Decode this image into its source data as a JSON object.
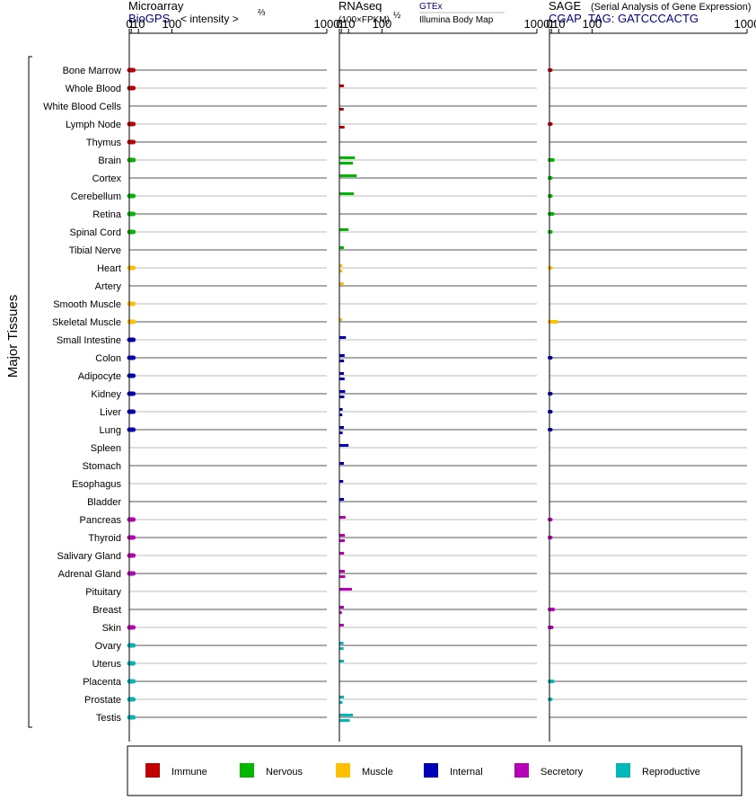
{
  "chart_data": {
    "type": "bar",
    "axis_label": "Major Tissues",
    "scale": "power 2/3",
    "xlim": [
      0,
      1000
    ],
    "ticks": [
      0,
      1,
      10,
      100,
      1000
    ],
    "panels": {
      "microarray": {
        "title": "Microarray",
        "source": "BioGPS",
        "scale_label": "< intensity >",
        "scale_exp": "⅔"
      },
      "rnaseq": {
        "title": "RNAseq",
        "unit": "(100×FPKM)",
        "unit_exp": "½",
        "series": [
          "GTEx",
          "Illumina Body Map"
        ]
      },
      "sage": {
        "title": "SAGE",
        "subtitle": "(Serial Analysis of Gene Expression)",
        "source": "CGAP",
        "tag": "TAG: GATCCCACTG"
      }
    },
    "groups": [
      {
        "name": "Immune",
        "color": "#c00000"
      },
      {
        "name": "Nervous",
        "color": "#00b800"
      },
      {
        "name": "Muscle",
        "color": "#ffc000"
      },
      {
        "name": "Internal",
        "color": "#0000b8"
      },
      {
        "name": "Secretory",
        "color": "#b800b8"
      },
      {
        "name": "Reproductive",
        "color": "#00b8b8"
      }
    ],
    "tissues": [
      {
        "name": "Bone Marrow",
        "group": 0,
        "microarray": 3,
        "gtex": null,
        "ibm": null,
        "sage": 0.05
      },
      {
        "name": "Whole Blood",
        "group": 0,
        "microarray": 3,
        "gtex": 3.5,
        "ibm": null,
        "sage": null
      },
      {
        "name": "White Blood Cells",
        "group": 0,
        "microarray": null,
        "gtex": null,
        "ibm": 3.2,
        "sage": null
      },
      {
        "name": "Lymph Node",
        "group": 0,
        "microarray": 3,
        "gtex": null,
        "ibm": 4.2,
        "sage": 0.05
      },
      {
        "name": "Thymus",
        "group": 0,
        "microarray": 3,
        "gtex": null,
        "ibm": null,
        "sage": null
      },
      {
        "name": "Brain",
        "group": 1,
        "microarray": 3.2,
        "gtex": 22,
        "ibm": 18,
        "sage": 2.3
      },
      {
        "name": "Cortex",
        "group": 1,
        "microarray": null,
        "gtex": 26,
        "ibm": null,
        "sage": 0.03
      },
      {
        "name": "Cerebellum",
        "group": 1,
        "microarray": 3,
        "gtex": 20,
        "ibm": null,
        "sage": 0.03
      },
      {
        "name": "Retina",
        "group": 1,
        "microarray": 3,
        "gtex": null,
        "ibm": null,
        "sage": 2.0
      },
      {
        "name": "Spinal Cord",
        "group": 1,
        "microarray": 3,
        "gtex": 10,
        "ibm": null,
        "sage": 0.03
      },
      {
        "name": "Tibial Nerve",
        "group": 1,
        "microarray": null,
        "gtex": 3.5,
        "ibm": null,
        "sage": null
      },
      {
        "name": "Heart",
        "group": 2,
        "microarray": 3,
        "gtex": 1.9,
        "ibm": 1.8,
        "sage": 0.02
      },
      {
        "name": "Artery",
        "group": 2,
        "microarray": null,
        "gtex": 3.2,
        "ibm": null,
        "sage": null
      },
      {
        "name": "Smooth Muscle",
        "group": 2,
        "microarray": 3,
        "gtex": null,
        "ibm": null,
        "sage": null
      },
      {
        "name": "Skeletal Muscle",
        "group": 2,
        "microarray": 3.2,
        "gtex": 1.6,
        "ibm": null,
        "sage": 6.5
      },
      {
        "name": "Small Intestine",
        "group": 3,
        "microarray": 3,
        "gtex": 6,
        "ibm": null,
        "sage": null
      },
      {
        "name": "Colon",
        "group": 3,
        "microarray": 3,
        "gtex": 4.3,
        "ibm": 3.6,
        "sage": 0.05
      },
      {
        "name": "Adipocyte",
        "group": 3,
        "microarray": 3,
        "gtex": 3.5,
        "ibm": 4.3,
        "sage": null
      },
      {
        "name": "Kidney",
        "group": 3,
        "microarray": 3,
        "gtex": 5,
        "ibm": 3.9,
        "sage": 0.05
      },
      {
        "name": "Liver",
        "group": 3,
        "microarray": 3,
        "gtex": 2.1,
        "ibm": 1.8,
        "sage": 0.05
      },
      {
        "name": "Lung",
        "group": 3,
        "microarray": 3,
        "gtex": 3.4,
        "ibm": 2.1,
        "sage": 0.05
      },
      {
        "name": "Spleen",
        "group": 3,
        "microarray": null,
        "gtex": 10,
        "ibm": null,
        "sage": null
      },
      {
        "name": "Stomach",
        "group": 3,
        "microarray": null,
        "gtex": 3.5,
        "ibm": null,
        "sage": null
      },
      {
        "name": "Esophagus",
        "group": 3,
        "microarray": null,
        "gtex": 2.7,
        "ibm": null,
        "sage": null
      },
      {
        "name": "Bladder",
        "group": 3,
        "microarray": null,
        "gtex": 3.5,
        "ibm": null,
        "sage": null
      },
      {
        "name": "Pancreas",
        "group": 4,
        "microarray": 3,
        "gtex": 5.5,
        "ibm": null,
        "sage": 0.05
      },
      {
        "name": "Thyroid",
        "group": 4,
        "microarray": 3,
        "gtex": 4.7,
        "ibm": 4.5,
        "sage": 0.05
      },
      {
        "name": "Salivary Gland",
        "group": 4,
        "microarray": 3,
        "gtex": 3.6,
        "ibm": null,
        "sage": null
      },
      {
        "name": "Adrenal Gland",
        "group": 4,
        "microarray": 3,
        "gtex": 4.5,
        "ibm": 5.1,
        "sage": null
      },
      {
        "name": "Pituitary",
        "group": 4,
        "microarray": null,
        "gtex": 16,
        "ibm": null,
        "sage": null
      },
      {
        "name": "Breast",
        "group": 4,
        "microarray": null,
        "gtex": 3.4,
        "ibm": 1.4,
        "sage": 2.5
      },
      {
        "name": "Skin",
        "group": 4,
        "microarray": 3,
        "gtex": 3.3,
        "ibm": null,
        "sage": 1.2
      },
      {
        "name": "Ovary",
        "group": 5,
        "microarray": 3,
        "gtex": 3,
        "ibm": 3.1,
        "sage": null
      },
      {
        "name": "Uterus",
        "group": 5,
        "microarray": 3,
        "gtex": 3.5,
        "ibm": null,
        "sage": null
      },
      {
        "name": "Placenta",
        "group": 5,
        "microarray": 3,
        "gtex": null,
        "ibm": null,
        "sage": 2.1
      },
      {
        "name": "Prostate",
        "group": 5,
        "microarray": 3,
        "gtex": 3.5,
        "ibm": 2.0,
        "sage": 0.03
      },
      {
        "name": "Testis",
        "group": 5,
        "microarray": 3,
        "gtex": 18,
        "ibm": 12,
        "sage": null
      }
    ]
  }
}
